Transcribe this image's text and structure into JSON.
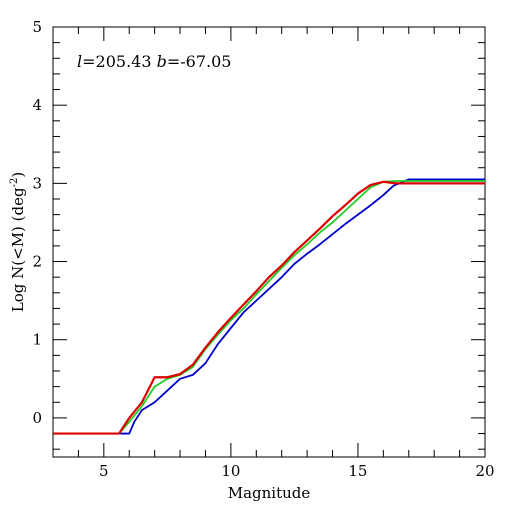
{
  "chart_data": {
    "type": "line",
    "title": "",
    "xlabel": "Magnitude",
    "ylabel_main": "Log N(<M) (deg",
    "ylabel_sup": "-2",
    "ylabel_close": ")",
    "annotation": {
      "l_symbol": "l",
      "l_value": "=205.43",
      "b_symbol": "b",
      "b_value": "=-67.05"
    },
    "xlim": [
      3,
      20
    ],
    "ylim": [
      -0.5,
      5
    ],
    "x_ticks": [
      5,
      10,
      15,
      20
    ],
    "y_ticks": [
      0,
      1,
      2,
      3,
      4,
      5
    ],
    "x_minor_step": 1,
    "y_minor_step": 0.2,
    "grid": false,
    "series": [
      {
        "color": "#0000cc",
        "x": [
          3,
          6.0,
          6.2,
          6.5,
          7.0,
          7.5,
          8.0,
          8.5,
          9.0,
          9.5,
          10.0,
          10.5,
          11.0,
          11.5,
          12.0,
          12.5,
          13.0,
          13.5,
          14.0,
          14.5,
          15.0,
          15.5,
          16.0,
          16.4,
          17.0,
          20
        ],
        "values": [
          -0.2,
          -0.2,
          -0.05,
          0.1,
          0.2,
          0.35,
          0.5,
          0.55,
          0.7,
          0.95,
          1.15,
          1.35,
          1.5,
          1.65,
          1.8,
          1.97,
          2.1,
          2.22,
          2.35,
          2.48,
          2.6,
          2.72,
          2.85,
          2.97,
          3.05,
          3.05
        ]
      },
      {
        "color": "#22cc22",
        "x": [
          3,
          5.6,
          6.0,
          6.5,
          7.0,
          7.5,
          8.0,
          8.5,
          9.0,
          9.5,
          10.0,
          10.5,
          11.0,
          11.5,
          12.0,
          12.5,
          13.0,
          13.5,
          14.0,
          14.5,
          15.0,
          15.5,
          16.0,
          16.5,
          20
        ],
        "values": [
          -0.2,
          -0.2,
          -0.05,
          0.15,
          0.4,
          0.5,
          0.55,
          0.65,
          0.88,
          1.07,
          1.25,
          1.4,
          1.58,
          1.75,
          1.92,
          2.08,
          2.22,
          2.37,
          2.5,
          2.65,
          2.8,
          2.95,
          3.02,
          3.03,
          3.03
        ]
      },
      {
        "color": "#dd0000",
        "x": [
          3,
          5.6,
          6.0,
          6.5,
          7.0,
          7.5,
          8.0,
          8.5,
          9.0,
          9.5,
          10.0,
          10.5,
          11.0,
          11.5,
          12.0,
          12.5,
          13.0,
          13.5,
          14.0,
          14.5,
          15.0,
          15.5,
          16.0,
          16.5,
          20
        ],
        "values": [
          -0.2,
          -0.2,
          0.0,
          0.2,
          0.52,
          0.52,
          0.56,
          0.68,
          0.9,
          1.1,
          1.28,
          1.45,
          1.62,
          1.8,
          1.95,
          2.12,
          2.27,
          2.42,
          2.58,
          2.72,
          2.87,
          2.98,
          3.02,
          3.0,
          3.0
        ]
      }
    ]
  }
}
